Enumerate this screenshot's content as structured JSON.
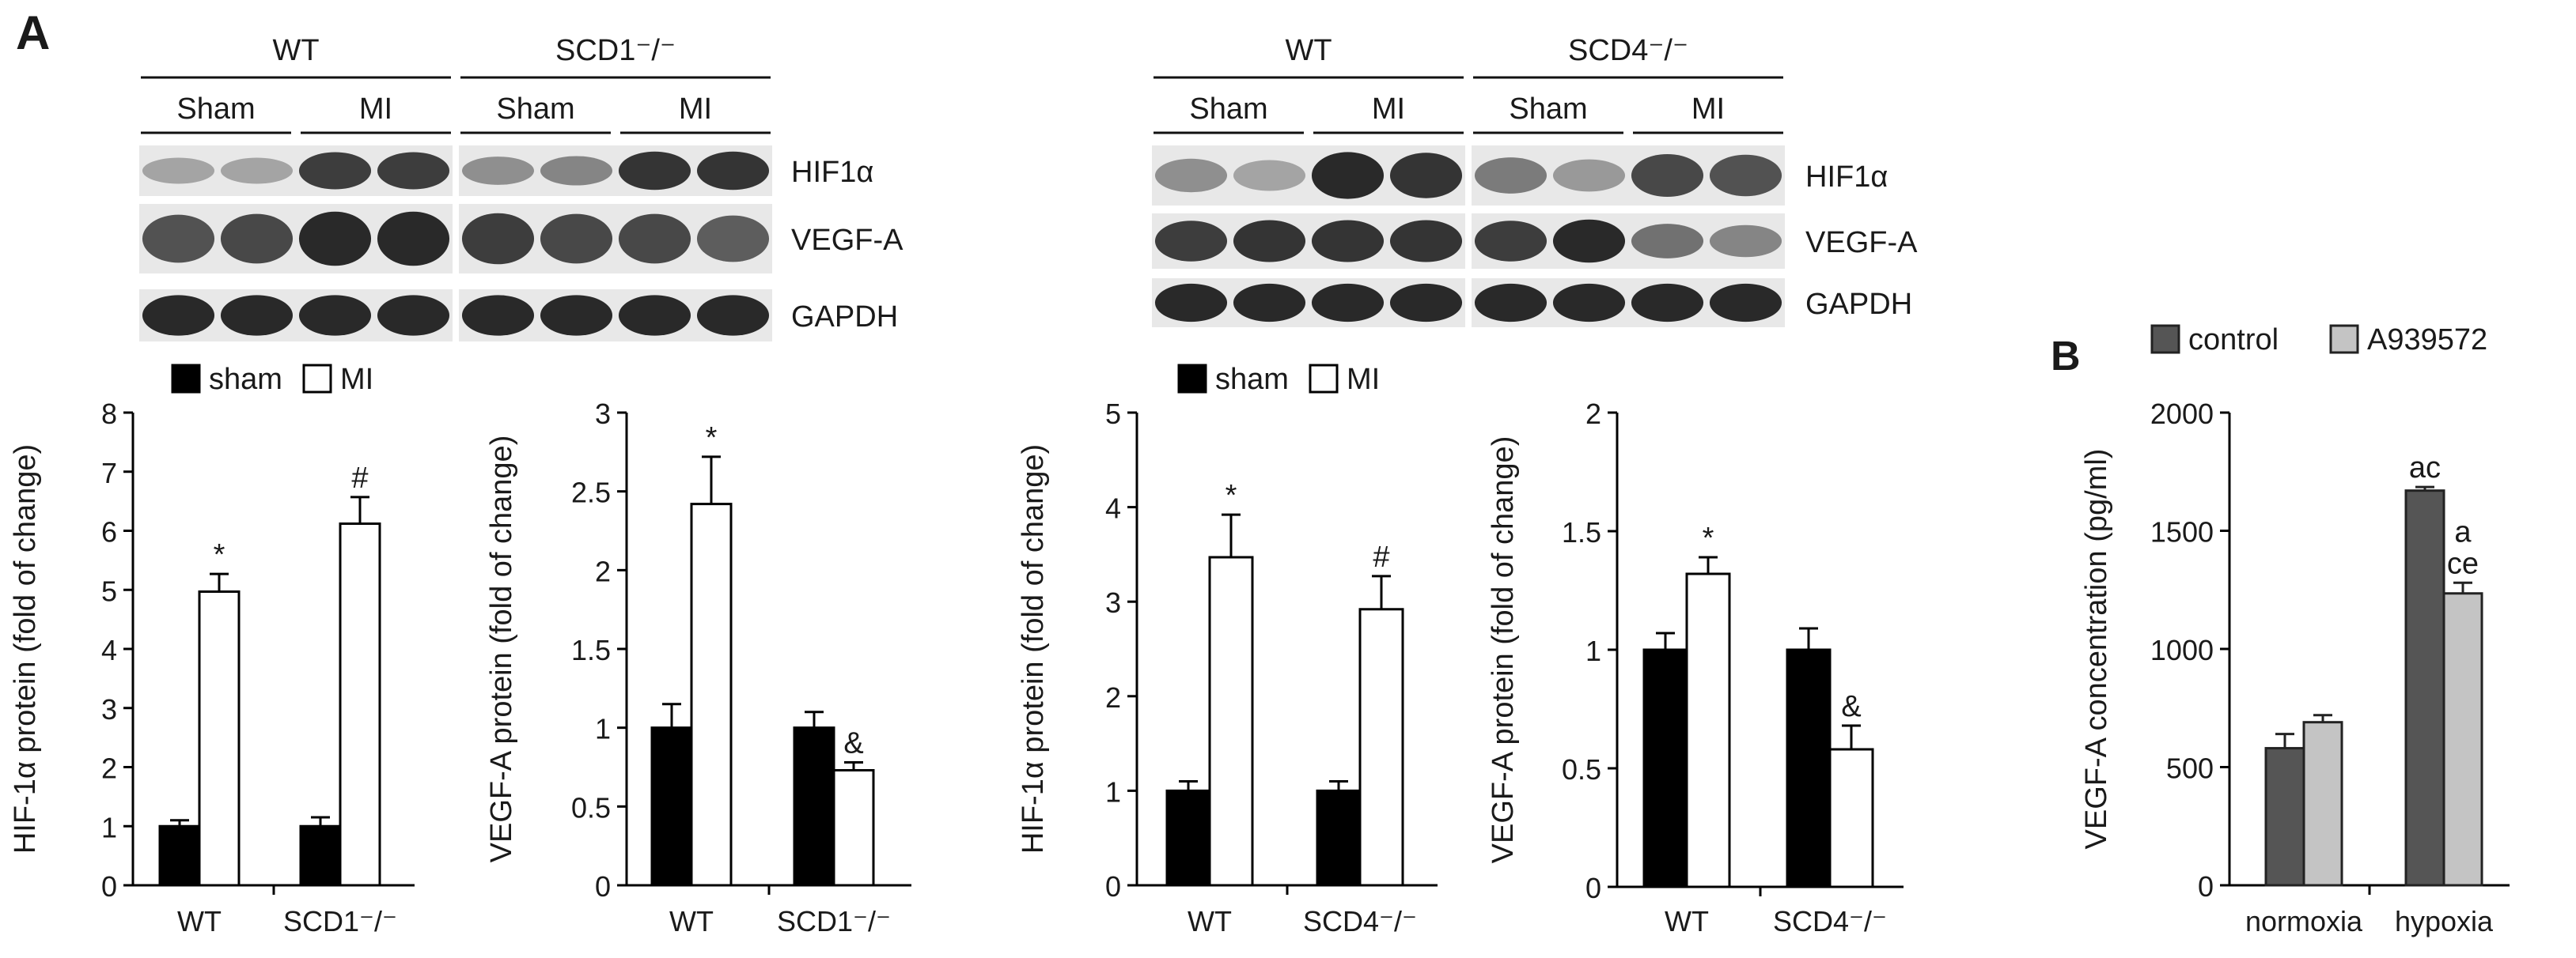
{
  "panel_labels": {
    "a": "A",
    "b": "B"
  },
  "blots": [
    {
      "genotype_groups": [
        "WT",
        "SCD1⁻/⁻"
      ],
      "conditions": [
        "Sham",
        "MI",
        "Sham",
        "MI"
      ],
      "proteins": [
        "HIF1α",
        "VEGF-A",
        "GAPDH"
      ]
    },
    {
      "genotype_groups": [
        "WT",
        "SCD4⁻/⁻"
      ],
      "conditions": [
        "Sham",
        "MI",
        "Sham",
        "MI"
      ],
      "proteins": [
        "HIF1α",
        "VEGF-A",
        "GAPDH"
      ]
    }
  ],
  "chart_data": [
    {
      "id": "a1",
      "type": "bar",
      "ylabel": "HIF-1α protein (fold of change)",
      "categories": [
        "WT",
        "SCD1⁻/⁻"
      ],
      "series": [
        {
          "name": "sham",
          "values": [
            1.0,
            1.0
          ],
          "errors": [
            0.1,
            0.15
          ],
          "color": "#000000"
        },
        {
          "name": "MI",
          "values": [
            4.97,
            6.12
          ],
          "errors": [
            0.3,
            0.45
          ],
          "color": "#ffffff"
        }
      ],
      "annotations": [
        {
          "category": 0,
          "series": 1,
          "text": "*"
        },
        {
          "category": 1,
          "series": 1,
          "text": "#"
        }
      ],
      "ylim": [
        0,
        8
      ],
      "yticks": [
        "0",
        "1",
        "2",
        "3",
        "4",
        "5",
        "6",
        "7",
        "8"
      ],
      "legend": "top"
    },
    {
      "id": "a2",
      "type": "bar",
      "ylabel": "VEGF-A protein (fold of change)",
      "categories": [
        "WT",
        "SCD1⁻/⁻"
      ],
      "series": [
        {
          "name": "sham",
          "values": [
            1.0,
            1.0
          ],
          "errors": [
            0.15,
            0.1
          ],
          "color": "#000000"
        },
        {
          "name": "MI",
          "values": [
            2.42,
            0.73
          ],
          "errors": [
            0.3,
            0.05
          ],
          "color": "#ffffff"
        }
      ],
      "annotations": [
        {
          "category": 0,
          "series": 1,
          "text": "*"
        },
        {
          "category": 1,
          "series": 1,
          "text": "&"
        }
      ],
      "ylim": [
        0,
        3
      ],
      "yticks": [
        "0",
        "0.5",
        "1",
        "1.5",
        "2",
        "2.5",
        "3"
      ],
      "legend": "none"
    },
    {
      "id": "a3",
      "type": "bar",
      "ylabel": "HIF-1α protein (fold of change)",
      "categories": [
        "WT",
        "SCD4⁻/⁻"
      ],
      "series": [
        {
          "name": "sham",
          "values": [
            1.0,
            1.0
          ],
          "errors": [
            0.1,
            0.1
          ],
          "color": "#000000"
        },
        {
          "name": "MI",
          "values": [
            3.47,
            2.92
          ],
          "errors": [
            0.45,
            0.35
          ],
          "color": "#ffffff"
        }
      ],
      "annotations": [
        {
          "category": 0,
          "series": 1,
          "text": "*"
        },
        {
          "category": 1,
          "series": 1,
          "text": "#"
        }
      ],
      "ylim": [
        0,
        5
      ],
      "yticks": [
        "0",
        "1",
        "2",
        "3",
        "4",
        "5"
      ],
      "legend": "top"
    },
    {
      "id": "a4",
      "type": "bar",
      "ylabel": "VEGF-A protein (fold of change)",
      "categories": [
        "WT",
        "SCD4⁻/⁻"
      ],
      "series": [
        {
          "name": "sham",
          "values": [
            1.0,
            1.0
          ],
          "errors": [
            0.07,
            0.09
          ],
          "color": "#000000"
        },
        {
          "name": "MI",
          "values": [
            1.32,
            0.58
          ],
          "errors": [
            0.07,
            0.1
          ],
          "color": "#ffffff"
        }
      ],
      "annotations": [
        {
          "category": 0,
          "series": 1,
          "text": "*"
        },
        {
          "category": 1,
          "series": 1,
          "text": "&"
        }
      ],
      "ylim": [
        0,
        2
      ],
      "yticks": [
        "0",
        "0.5",
        "1",
        "1.5",
        "2"
      ],
      "legend": "none"
    },
    {
      "id": "b",
      "type": "bar",
      "ylabel": "VEGF-A concentration (pg/ml)",
      "categories": [
        "normoxia",
        "hypoxia"
      ],
      "series": [
        {
          "name": "control",
          "values": [
            580,
            1670
          ],
          "errors": [
            60,
            15
          ],
          "color": "#555555"
        },
        {
          "name": "A939572",
          "values": [
            690,
            1235
          ],
          "errors": [
            30,
            45
          ],
          "color": "#c4c4c4"
        }
      ],
      "annotations": [
        {
          "category": 1,
          "series": 0,
          "text": "ac"
        },
        {
          "category": 1,
          "series": 1,
          "text": "a"
        },
        {
          "category": 1,
          "series": 1,
          "text": "ce"
        }
      ],
      "ylim": [
        0,
        2000
      ],
      "yticks": [
        "0",
        "500",
        "1000",
        "1500",
        "2000"
      ],
      "legend": "top"
    }
  ]
}
